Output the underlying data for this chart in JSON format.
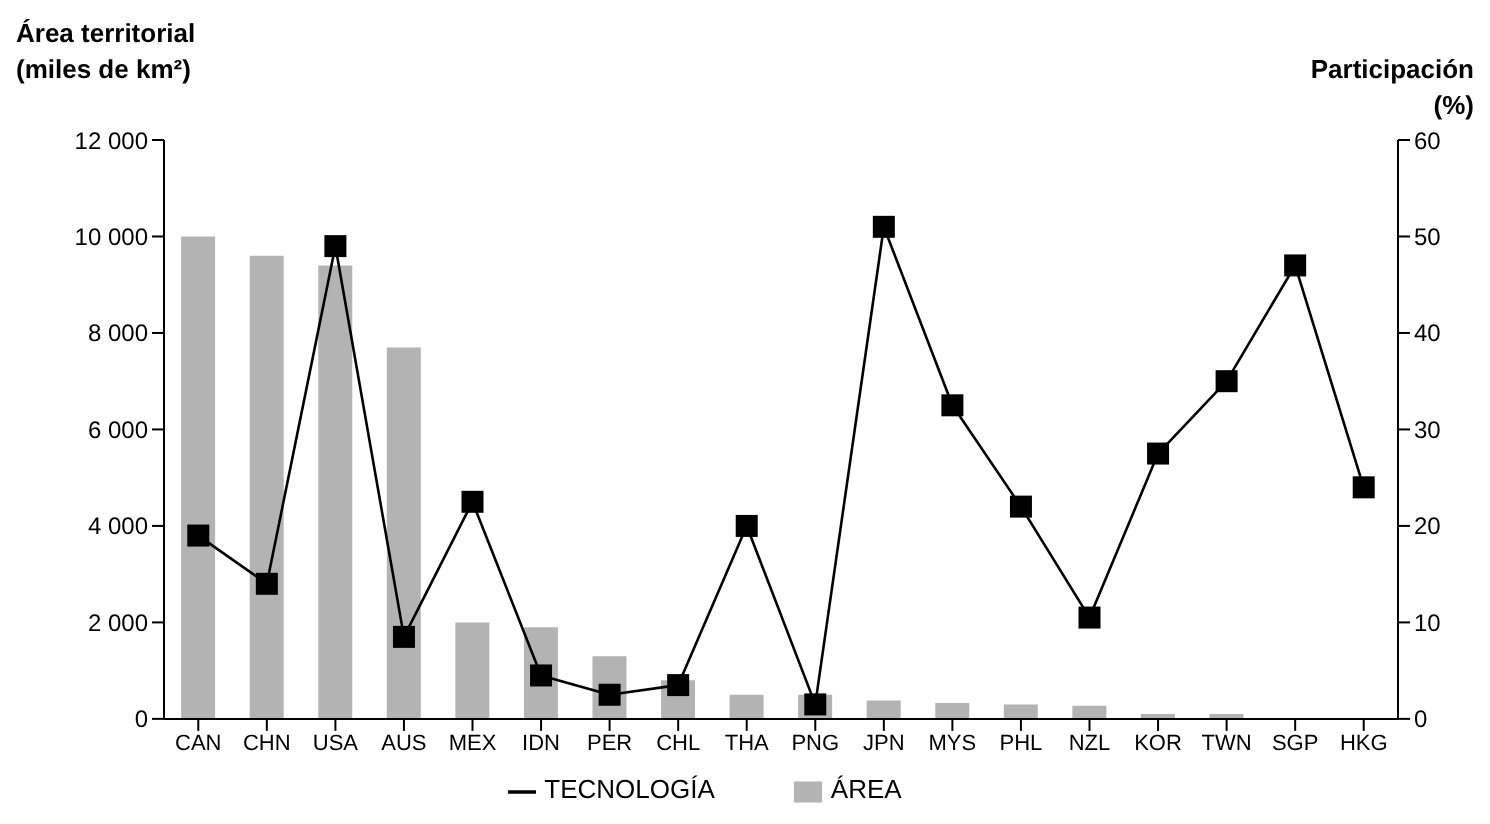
{
  "chart_data": {
    "type": "bar",
    "ylabel": "Área territorial\n(miles de km²)",
    "y2label": "Participación\n(%)",
    "categories": [
      "CAN",
      "CHN",
      "USA",
      "AUS",
      "MEX",
      "IDN",
      "PER",
      "CHL",
      "THA",
      "PNG",
      "JPN",
      "MYS",
      "PHL",
      "NZL",
      "KOR",
      "TWN",
      "SGP",
      "HKG"
    ],
    "series": [
      {
        "name": "ÁREA",
        "color": "#b3b3b3",
        "values": [
          10000,
          9600,
          9400,
          7700,
          2000,
          1900,
          1300,
          800,
          500,
          500,
          380,
          330,
          300,
          270,
          100,
          100,
          0,
          0
        ]
      },
      {
        "name": "TECNOLOGÍA",
        "type": "line",
        "axis": "y2",
        "color": "#000000",
        "marker": "square",
        "values": [
          19,
          14,
          49,
          8.5,
          22.5,
          4.5,
          2.5,
          3.5,
          20,
          1.5,
          51,
          32.5,
          22,
          10.5,
          27.5,
          35,
          47,
          24
        ]
      }
    ],
    "ylim": [
      0,
      12000
    ],
    "yticks": [
      0,
      {
        "value": 2000,
        "label": "2 000"
      },
      {
        "value": 4000,
        "label": "4 000"
      },
      {
        "value": 6000,
        "label": "6 000"
      },
      {
        "value": 8000,
        "label": "8 000"
      },
      {
        "value": 10000,
        "label": "10 000"
      },
      {
        "value": 12000,
        "label": "12 000"
      }
    ],
    "y2lim": [
      0,
      60
    ],
    "y2ticks": [
      0,
      10,
      20,
      30,
      40,
      50,
      60
    ],
    "grid": false,
    "legend": "bottom"
  }
}
